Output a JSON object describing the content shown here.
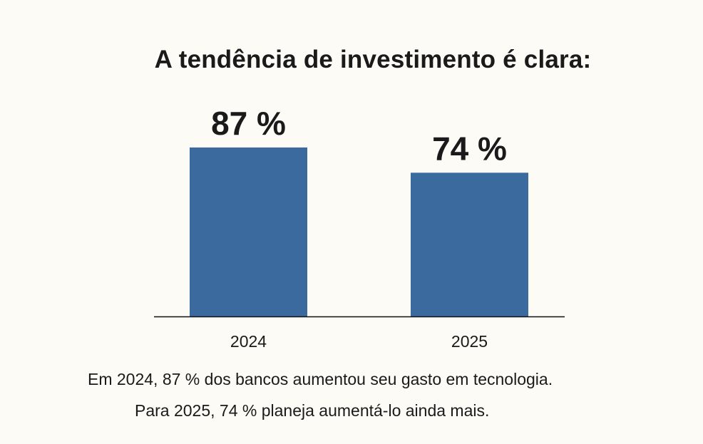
{
  "chart_data": {
    "type": "bar",
    "title": "A tendência de investimento é clara:",
    "categories": [
      "2024",
      "2025"
    ],
    "values": [
      87,
      74
    ],
    "data_labels": [
      "87 %",
      "74 %"
    ],
    "xlabel": "",
    "ylabel": "",
    "ylim": [
      0,
      100
    ],
    "grid": false,
    "bar_color": "#3a6a9e"
  },
  "captions": [
    "Em 2024, 87 % dos bancos aumentou seu gasto em tecnologia.",
    "Para 2025, 74 % planeja aumentá-lo ainda mais."
  ]
}
